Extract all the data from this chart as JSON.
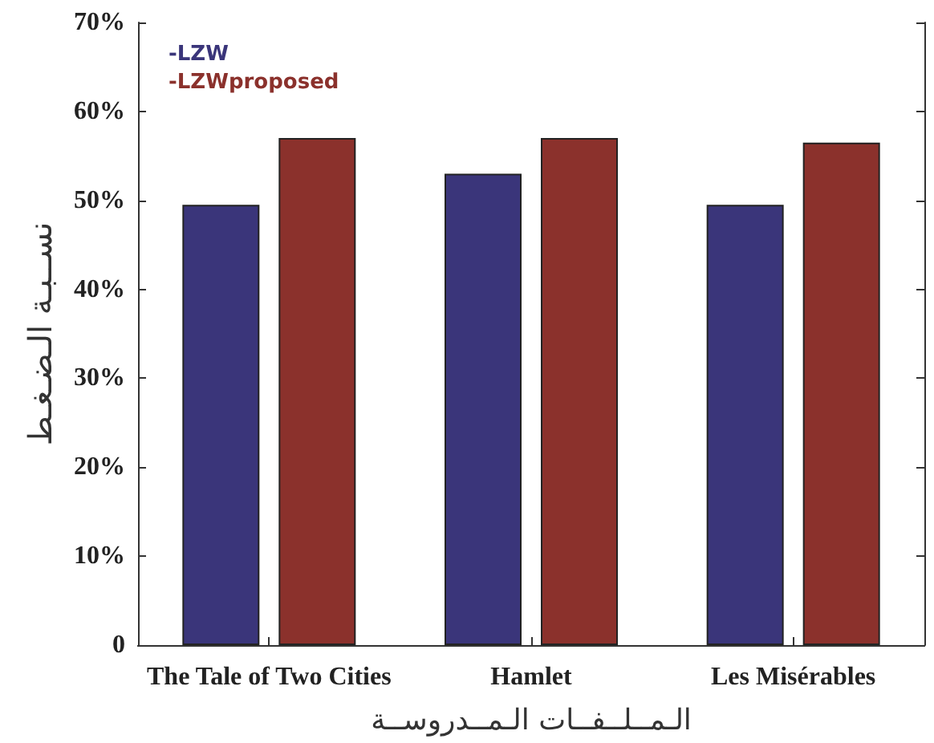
{
  "chart_data": {
    "type": "bar",
    "categories": [
      "The Tale of Two Cities",
      "Hamlet",
      "Les Misérables"
    ],
    "series": [
      {
        "name": "-LZW",
        "color": "#3a357a",
        "values": [
          49.5,
          53,
          49.5
        ]
      },
      {
        "name": "-LZWproposed",
        "color": "#8b312c",
        "values": [
          57,
          57,
          56.5
        ]
      }
    ],
    "xlabel": "الـمــلــفــات الـمــدروســة",
    "ylabel": "نســبـة الـضـغـط",
    "ylim": [
      0,
      70
    ],
    "yticks": [
      0,
      {
        "value": 10,
        "label": "10%"
      },
      {
        "value": 20,
        "label": "20%"
      },
      {
        "value": 30,
        "label": "30%"
      },
      {
        "value": 40,
        "label": "40%"
      },
      {
        "value": 50,
        "label": "50%"
      },
      {
        "value": 60,
        "label": "60%"
      },
      {
        "value": 70,
        "label": "70%"
      }
    ],
    "grid": false,
    "legend": "top left"
  }
}
